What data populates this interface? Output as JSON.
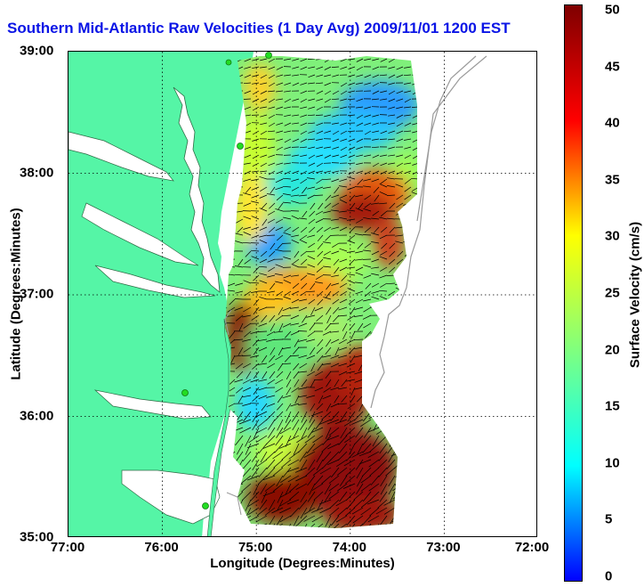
{
  "title": "Southern Mid-Atlantic Raw Velocities (1 Day Avg) 2009/11/01 1200 EST",
  "xlabel": "Longitude (Degrees:Minutes)",
  "ylabel": "Latitude (Degrees:Minutes)",
  "x_ticks": [
    "77:00",
    "76:00",
    "75:00",
    "74:00",
    "73:00",
    "72:00"
  ],
  "y_ticks": [
    "39:00",
    "38:00",
    "37:00",
    "36:00",
    "35:00"
  ],
  "colorbar": {
    "label": "Surface Velocity (cm/s)",
    "ticks": [
      "50",
      "45",
      "40",
      "35",
      "30",
      "25",
      "20",
      "15",
      "10",
      "5",
      "0"
    ],
    "range": [
      0,
      50
    ],
    "colormap": [
      "#0000ff",
      "#00ffff",
      "#7fff7f",
      "#ffff00",
      "#ff0000",
      "#7f0000"
    ]
  },
  "map": {
    "lon_range": [
      -77,
      -72
    ],
    "lat_range": [
      35,
      39
    ],
    "land_color": "#55f5a6",
    "grid": "dotted",
    "hf_radar_sites": 5
  }
}
